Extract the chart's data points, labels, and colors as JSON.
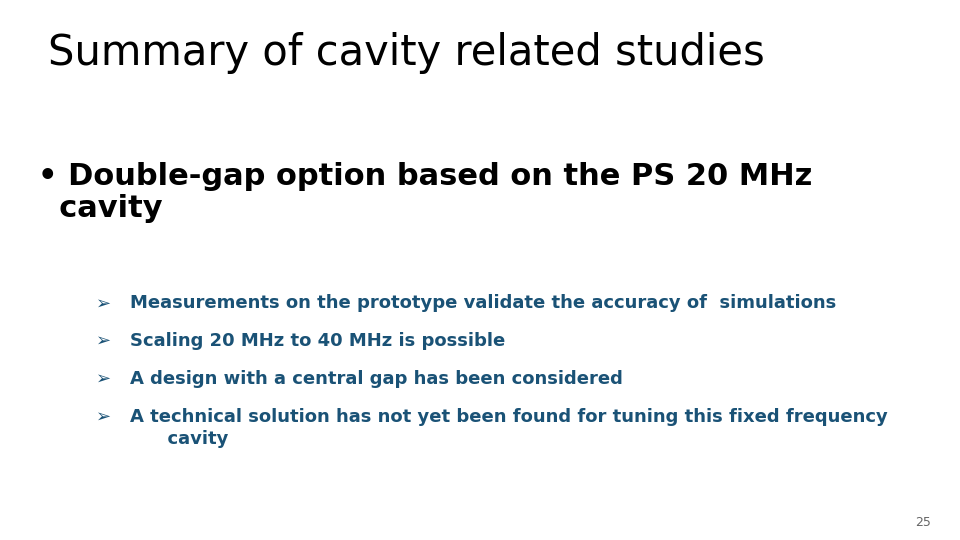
{
  "background_color": "#ffffff",
  "title": "Summary of cavity related studies",
  "title_fontsize": 30,
  "title_color": "#000000",
  "title_bold": false,
  "bullet_text_line1": "• Double-gap option based on the PS 20 MHz",
  "bullet_text_line2": "  cavity",
  "bullet_fontsize": 22,
  "bullet_color": "#000000",
  "bullet_bold": true,
  "sub_bullets": [
    "Measurements on the prototype validate the accuracy of  simulations",
    "Scaling 20 MHz to 40 MHz is possible",
    "A design with a central gap has been considered",
    "A technical solution has not yet been found for tuning this fixed frequency\n      cavity"
  ],
  "sub_bullet_fontsize": 13,
  "sub_bullet_color": "#1A5276",
  "sub_bullet_bold": true,
  "sub_bullet_symbol": "➢",
  "page_number": "25",
  "page_number_fontsize": 9,
  "page_number_color": "#666666"
}
